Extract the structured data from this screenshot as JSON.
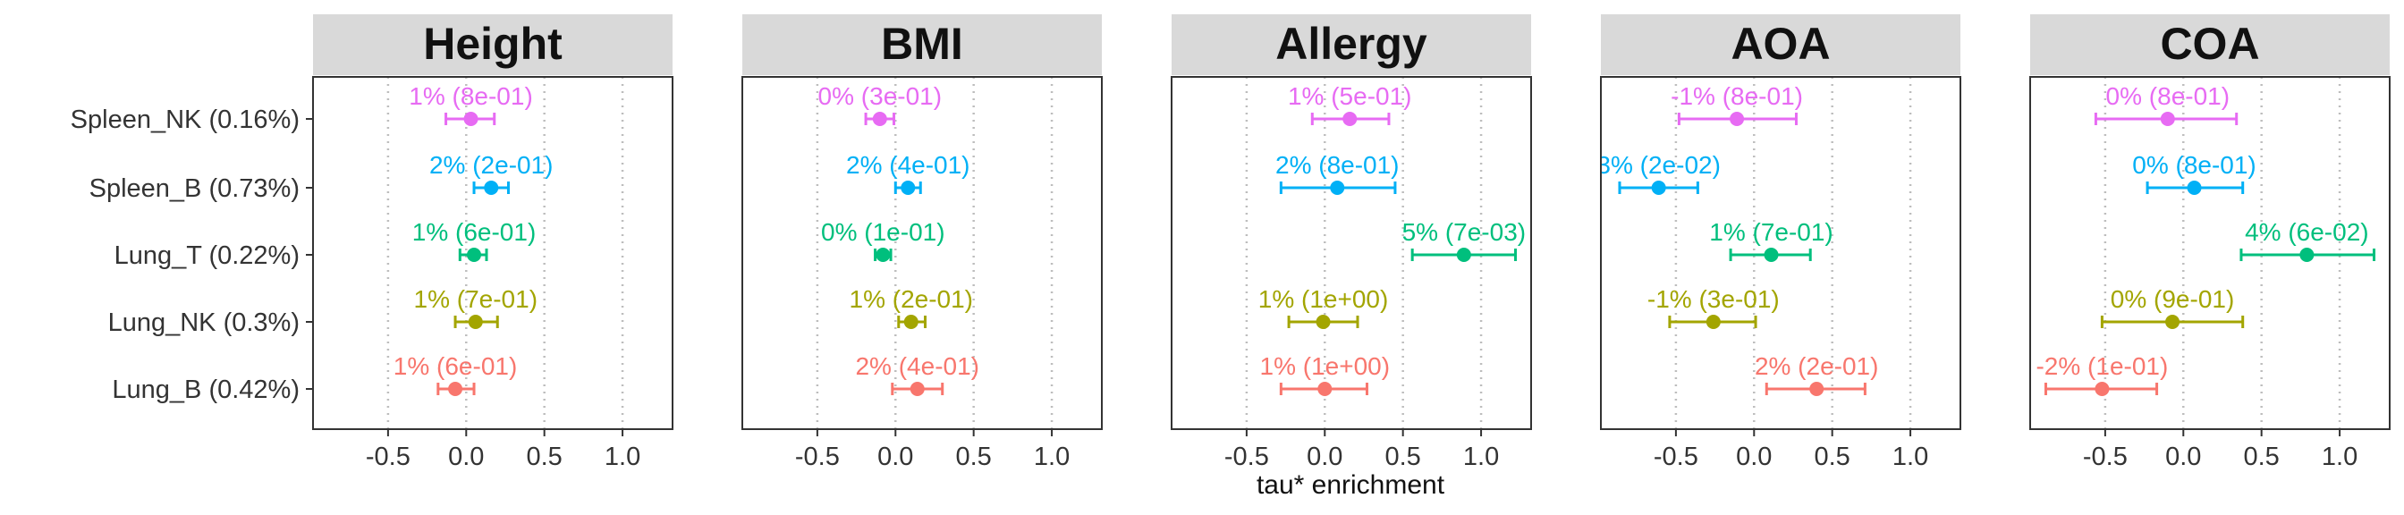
{
  "chart_data": {
    "type": "scatter",
    "subtype": "point-range facets",
    "xlabel": "tau* enrichment",
    "x_ticks": [
      -0.5,
      0.0,
      0.5,
      1.0
    ],
    "x_tick_labels": [
      "-0.5",
      "0.0",
      "0.5",
      "1.0"
    ],
    "xlim": [
      -0.98,
      1.32
    ],
    "categories": [
      "Spleen_NK (0.16%)",
      "Spleen_B (0.73%)",
      "Lung_T (0.22%)",
      "Lung_NK (0.3%)",
      "Lung_B (0.42%)"
    ],
    "colors": {
      "Spleen_NK (0.16%)": "#E76BF3",
      "Spleen_B (0.73%)": "#00B0F6",
      "Lung_T (0.22%)": "#00BF7D",
      "Lung_NK (0.3%)": "#A3A500",
      "Lung_B (0.42%)": "#F8766D"
    },
    "grid": "vertical dotted at ticks",
    "legend": "none",
    "panels": [
      {
        "title": "Height",
        "points": [
          {
            "category": "Spleen_NK (0.16%)",
            "value": 0.03,
            "low": -0.13,
            "high": 0.18,
            "label": "1% (8e-01)"
          },
          {
            "category": "Spleen_B (0.73%)",
            "value": 0.16,
            "low": 0.05,
            "high": 0.27,
            "label": "2% (2e-01)"
          },
          {
            "category": "Lung_T (0.22%)",
            "value": 0.05,
            "low": -0.04,
            "high": 0.13,
            "label": "1% (6e-01)"
          },
          {
            "category": "Lung_NK (0.3%)",
            "value": 0.06,
            "low": -0.07,
            "high": 0.2,
            "label": "1% (7e-01)"
          },
          {
            "category": "Lung_B (0.42%)",
            "value": -0.07,
            "low": -0.18,
            "high": 0.05,
            "label": "1% (6e-01)"
          }
        ]
      },
      {
        "title": "BMI",
        "points": [
          {
            "category": "Spleen_NK (0.16%)",
            "value": -0.1,
            "low": -0.19,
            "high": -0.01,
            "label": "0% (3e-01)"
          },
          {
            "category": "Spleen_B (0.73%)",
            "value": 0.08,
            "low": 0.0,
            "high": 0.16,
            "label": "2% (4e-01)"
          },
          {
            "category": "Lung_T (0.22%)",
            "value": -0.08,
            "low": -0.13,
            "high": -0.03,
            "label": "0% (1e-01)"
          },
          {
            "category": "Lung_NK (0.3%)",
            "value": 0.1,
            "low": 0.02,
            "high": 0.19,
            "label": "1% (2e-01)"
          },
          {
            "category": "Lung_B (0.42%)",
            "value": 0.14,
            "low": -0.02,
            "high": 0.3,
            "label": "2% (4e-01)"
          }
        ]
      },
      {
        "title": "Allergy",
        "points": [
          {
            "category": "Spleen_NK (0.16%)",
            "value": 0.16,
            "low": -0.08,
            "high": 0.41,
            "label": "1% (5e-01)"
          },
          {
            "category": "Spleen_B (0.73%)",
            "value": 0.08,
            "low": -0.28,
            "high": 0.45,
            "label": "2% (8e-01)"
          },
          {
            "category": "Lung_T (0.22%)",
            "value": 0.89,
            "low": 0.56,
            "high": 1.22,
            "label": "5% (7e-03)"
          },
          {
            "category": "Lung_NK (0.3%)",
            "value": -0.01,
            "low": -0.23,
            "high": 0.21,
            "label": "1% (1e+00)"
          },
          {
            "category": "Lung_B (0.42%)",
            "value": 0.0,
            "low": -0.28,
            "high": 0.27,
            "label": "1% (1e+00)"
          }
        ]
      },
      {
        "title": "AOA",
        "points": [
          {
            "category": "Spleen_NK (0.16%)",
            "value": -0.11,
            "low": -0.48,
            "high": 0.27,
            "label": "-1% (8e-01)"
          },
          {
            "category": "Spleen_B (0.73%)",
            "value": -0.61,
            "low": -0.86,
            "high": -0.36,
            "label": "3% (2e-02)"
          },
          {
            "category": "Lung_T (0.22%)",
            "value": 0.11,
            "low": -0.15,
            "high": 0.36,
            "label": "1% (7e-01)"
          },
          {
            "category": "Lung_NK (0.3%)",
            "value": -0.26,
            "low": -0.54,
            "high": 0.01,
            "label": "-1% (3e-01)"
          },
          {
            "category": "Lung_B (0.42%)",
            "value": 0.4,
            "low": 0.08,
            "high": 0.71,
            "label": "2% (2e-01)"
          }
        ]
      },
      {
        "title": "COA",
        "points": [
          {
            "category": "Spleen_NK (0.16%)",
            "value": -0.1,
            "low": -0.56,
            "high": 0.34,
            "label": "0% (8e-01)"
          },
          {
            "category": "Spleen_B (0.73%)",
            "value": 0.07,
            "low": -0.23,
            "high": 0.38,
            "label": "0% (8e-01)"
          },
          {
            "category": "Lung_T (0.22%)",
            "value": 0.79,
            "low": 0.37,
            "high": 1.22,
            "label": "4% (6e-02)"
          },
          {
            "category": "Lung_NK (0.3%)",
            "value": -0.07,
            "low": -0.52,
            "high": 0.38,
            "label": "0% (9e-01)"
          },
          {
            "category": "Lung_B (0.42%)",
            "value": -0.52,
            "low": -0.88,
            "high": -0.17,
            "label": "-2% (1e-01)"
          }
        ]
      }
    ]
  }
}
